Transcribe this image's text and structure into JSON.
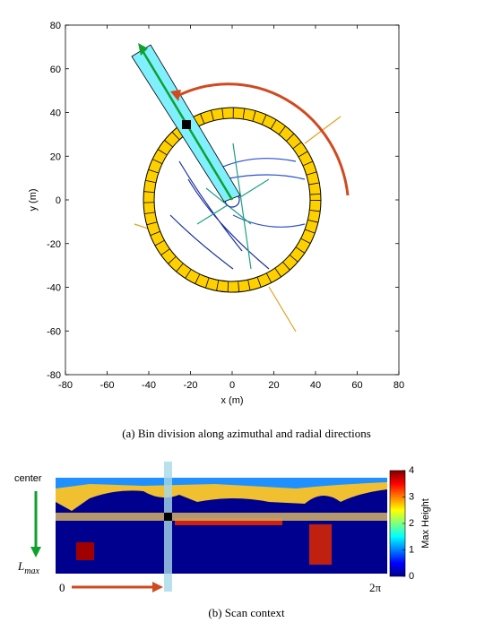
{
  "figure_a": {
    "type": "scatter",
    "xlabel": "x (m)",
    "ylabel": "y (m)",
    "xlim": [
      -80,
      80
    ],
    "ylim": [
      -80,
      80
    ],
    "xticks": [
      -80,
      -60,
      -40,
      -20,
      0,
      20,
      40,
      60,
      80
    ],
    "yticks": [
      -80,
      -60,
      -40,
      -20,
      0,
      20,
      40,
      60,
      80
    ],
    "caption": "(a) Bin division along azimuthal and radial directions"
  },
  "figure_b": {
    "center_label": "center",
    "lmax_label": "L",
    "lmax_subscript": "max",
    "start_label": "0",
    "end_label": "2π",
    "colorbar": {
      "label": "Max Height",
      "lim": [
        0,
        4
      ],
      "ticks": [
        0,
        1,
        2,
        3,
        4
      ]
    },
    "caption": "(b) Scan context"
  }
}
